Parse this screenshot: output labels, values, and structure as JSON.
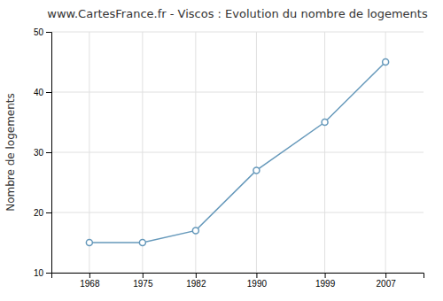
{
  "chart_data": {
    "type": "line",
    "title": "www.CartesFrance.fr - Viscos : Evolution du nombre de logements",
    "ylabel": "Nombre de logements",
    "x": [
      1968,
      1975,
      1982,
      1990,
      1999,
      2007
    ],
    "values": [
      15,
      15,
      17,
      27,
      35,
      45
    ],
    "xlim": [
      1963,
      2012
    ],
    "xticks": [
      1968,
      1975,
      1982,
      1990,
      1999,
      2007
    ],
    "ylim": [
      10,
      50
    ],
    "yticks": [
      10,
      20,
      30,
      40,
      50
    ],
    "grid": true,
    "color": "#6699bb",
    "marker": "circle"
  }
}
